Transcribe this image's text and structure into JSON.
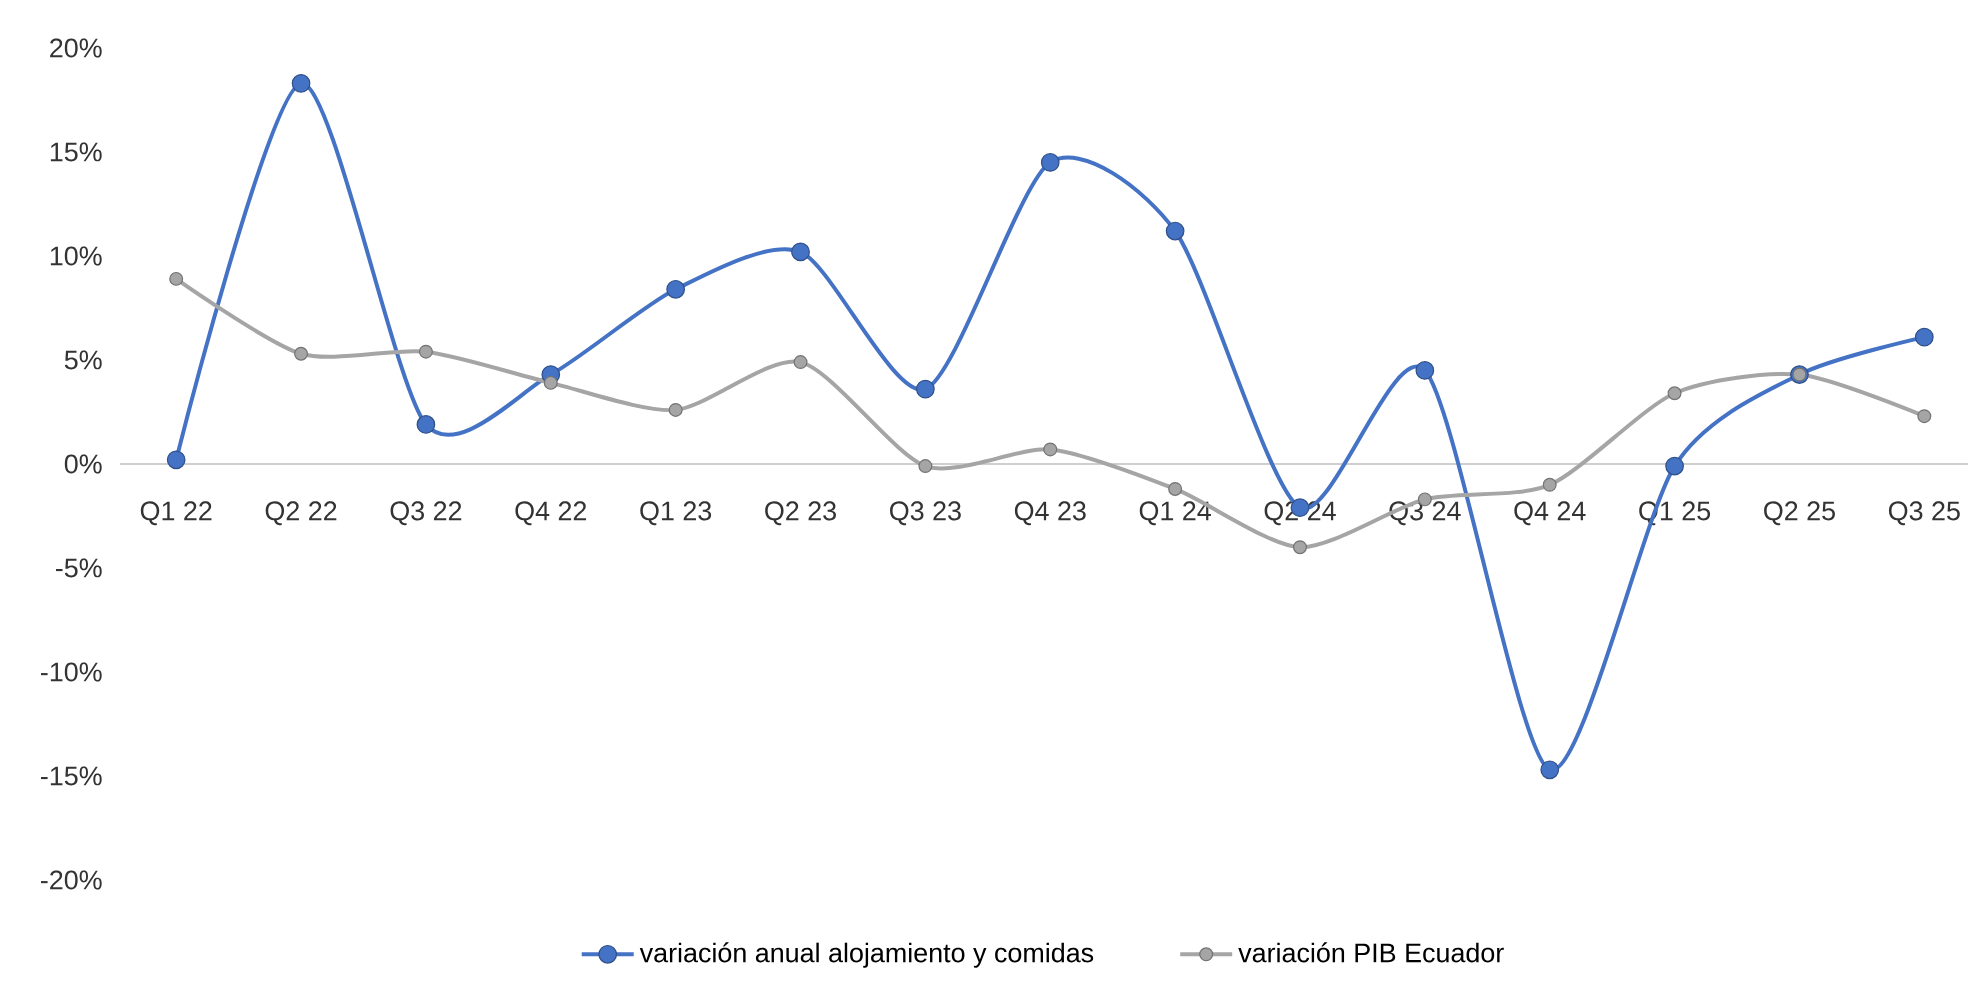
{
  "chart_data": {
    "type": "line",
    "categories": [
      "Q1 22",
      "Q2 22",
      "Q3 22",
      "Q4 22",
      "Q1 23",
      "Q2 23",
      "Q3 23",
      "Q4 23",
      "Q1 24",
      "Q2 24",
      "Q3 24",
      "Q4 24",
      "Q1 25",
      "Q2 25",
      "Q3 25"
    ],
    "series": [
      {
        "name": "variación anual alojamiento y comidas",
        "color": "#4472c4",
        "values": [
          0.2,
          18.3,
          1.9,
          4.3,
          8.4,
          10.2,
          3.6,
          14.5,
          11.2,
          -2.1,
          4.5,
          -14.7,
          -0.1,
          4.3,
          6.1
        ]
      },
      {
        "name": "variación PIB Ecuador",
        "color": "#a5a5a5",
        "values": [
          8.9,
          5.3,
          5.4,
          3.9,
          2.6,
          4.9,
          -0.1,
          0.7,
          -1.2,
          -4.0,
          -1.7,
          -1.0,
          3.4,
          4.3,
          2.3
        ]
      }
    ],
    "ylim": [
      -20,
      20
    ],
    "yticks": [
      {
        "value": -20,
        "label": "-20%"
      },
      {
        "value": -15,
        "label": "-15%"
      },
      {
        "value": -10,
        "label": "-10%"
      },
      {
        "value": -5,
        "label": "-5%"
      },
      {
        "value": 0,
        "label": "0%"
      },
      {
        "value": 5,
        "label": "5%"
      },
      {
        "value": 10,
        "label": "10%"
      },
      {
        "value": 15,
        "label": "15%"
      },
      {
        "value": 20,
        "label": "20%"
      }
    ],
    "grid": false,
    "legend": "bottom",
    "marker": "circle",
    "line_style": "solid"
  }
}
